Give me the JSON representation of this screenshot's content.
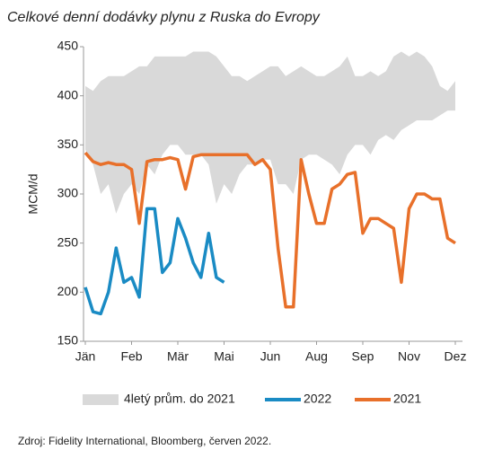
{
  "chart_data": {
    "type": "line",
    "title": "Celkové denní dodávky plynu z Ruska do Evropy",
    "y_label": "MCM/d",
    "source": "Zdroj: Fidelity International, Bloomberg, červen 2022.",
    "categories": [
      "Jän",
      null,
      null,
      null,
      null,
      null,
      "Feb",
      null,
      null,
      null,
      null,
      null,
      "Mär",
      null,
      null,
      null,
      null,
      null,
      "Mai",
      null,
      null,
      null,
      null,
      null,
      "Jun",
      null,
      null,
      null,
      null,
      null,
      "Aug",
      null,
      null,
      null,
      null,
      null,
      "Sep",
      null,
      null,
      null,
      null,
      null,
      "Nov",
      null,
      null,
      null,
      null,
      null,
      "Dez"
    ],
    "ylim": [
      150,
      450
    ],
    "yticks": [
      150,
      200,
      250,
      300,
      350,
      400,
      450
    ],
    "band": {
      "name": "4letý prům. do 2021",
      "color": "#d9d9d9",
      "low": [
        345,
        330,
        300,
        310,
        280,
        300,
        310,
        300,
        330,
        320,
        340,
        350,
        350,
        340,
        340,
        340,
        330,
        290,
        310,
        300,
        320,
        330,
        330,
        335,
        335,
        310,
        310,
        300,
        335,
        340,
        340,
        335,
        330,
        320,
        340,
        350,
        350,
        340,
        355,
        360,
        355,
        365,
        370,
        375,
        375,
        375,
        380,
        385,
        385
      ],
      "high": [
        410,
        405,
        415,
        420,
        420,
        420,
        425,
        430,
        430,
        440,
        440,
        440,
        440,
        440,
        445,
        445,
        445,
        440,
        430,
        420,
        420,
        415,
        420,
        425,
        430,
        430,
        420,
        425,
        430,
        425,
        420,
        420,
        425,
        430,
        440,
        420,
        420,
        425,
        420,
        425,
        440,
        445,
        440,
        445,
        440,
        430,
        410,
        405,
        415
      ]
    },
    "series": [
      {
        "name": "2022",
        "color": "#1a8bc4",
        "values": [
          205,
          180,
          178,
          200,
          245,
          210,
          215,
          195,
          285,
          285,
          220,
          230,
          275,
          255,
          230,
          215,
          260,
          215,
          210,
          null,
          null,
          null,
          null,
          null,
          null,
          null,
          null,
          null,
          null,
          null,
          null,
          null,
          null,
          null,
          null,
          null,
          null,
          null,
          null,
          null,
          null,
          null,
          null,
          null,
          null,
          null,
          null,
          null,
          null
        ]
      },
      {
        "name": "2021",
        "color": "#e8702a",
        "values": [
          342,
          333,
          330,
          332,
          330,
          330,
          325,
          270,
          333,
          335,
          335,
          337,
          335,
          305,
          338,
          340,
          340,
          340,
          340,
          340,
          340,
          340,
          330,
          335,
          325,
          245,
          185,
          185,
          335,
          300,
          270,
          270,
          305,
          310,
          320,
          322,
          260,
          275,
          275,
          270,
          265,
          210,
          285,
          300,
          300,
          295,
          295,
          255,
          250
        ]
      }
    ]
  }
}
